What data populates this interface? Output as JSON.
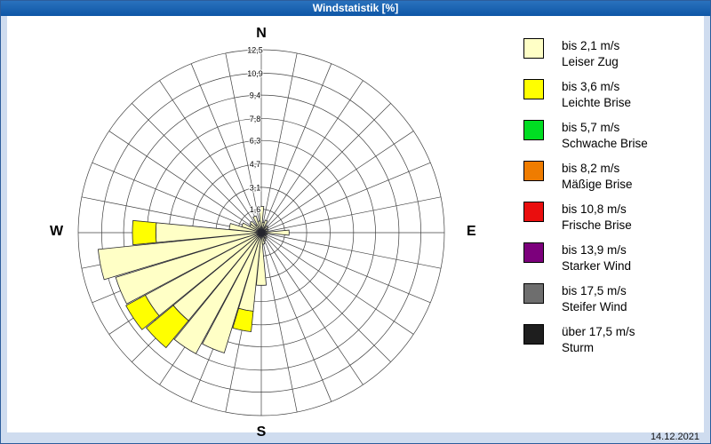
{
  "window": {
    "title": "Windstatistik [%]",
    "titlebar_color": "#1663b2",
    "date": "14.12.2021"
  },
  "compass": {
    "north": "N",
    "east": "E",
    "south": "S",
    "west": "W"
  },
  "legend": {
    "position": "right",
    "items": [
      {
        "color": "#ffffc6",
        "line1": "bis 2,1 m/s",
        "line2": "Leiser Zug"
      },
      {
        "color": "#ffff00",
        "line1": "bis 3,6 m/s",
        "line2": "Leichte Brise"
      },
      {
        "color": "#00dd22",
        "line1": "bis 5,7 m/s",
        "line2": "Schwache Brise"
      },
      {
        "color": "#ef7c00",
        "line1": "bis 8,2 m/s",
        "line2": "Mäßige Brise"
      },
      {
        "color": "#ea0e0e",
        "line1": "bis 10,8 m/s",
        "line2": "Frische Brise"
      },
      {
        "color": "#7c007c",
        "line1": "bis 13,9 m/s",
        "line2": "Starker Wind"
      },
      {
        "color": "#6e6e6e",
        "line1": "bis 17,5 m/s",
        "line2": "Steifer Wind"
      },
      {
        "color": "#1e1e1e",
        "line1": "über 17,5 m/s",
        "line2": "Sturm"
      }
    ]
  },
  "chart_data": {
    "type": "windrose",
    "title": "Windstatistik [%]",
    "unit": "%",
    "sectors": 32,
    "angle_step_deg": 11.25,
    "petal_half_angle_deg": 5.4,
    "rings": 8,
    "max": 12.5,
    "ring_values": [
      1.6,
      3.1,
      4.7,
      6.3,
      7.8,
      9.4,
      10.9,
      12.5
    ],
    "ring_labels": [
      "1,6",
      "3,1",
      "4,7",
      "6,3",
      "7,8",
      "9,4",
      "10,9",
      "12,5"
    ],
    "grid": true,
    "legend_position": "right",
    "series": [
      {
        "name": "bis 2,1 m/s",
        "color": "#ffffc6",
        "values": [
          1.8,
          0.7,
          0.9,
          0.4,
          0.6,
          0.3,
          0.5,
          0.3,
          1.9,
          0.4,
          0.4,
          0.3,
          0.5,
          0.4,
          0.6,
          0.8,
          3.6,
          5.4,
          8.6,
          9.4,
          7.8,
          9.0,
          10.4,
          11.2,
          7.2,
          2.2,
          1.4,
          0.9,
          1.0,
          0.6,
          1.2,
          0.8
        ]
      },
      {
        "name": "bis 3,6 m/s",
        "color": "#ffff00",
        "values": [
          0,
          0,
          0,
          0,
          0,
          0,
          0,
          0,
          0,
          0,
          0,
          0,
          0,
          0,
          0,
          0,
          0,
          1.4,
          0,
          0,
          2.4,
          1.5,
          0,
          0,
          1.6,
          0,
          0,
          0,
          0,
          0,
          0,
          0
        ]
      }
    ]
  }
}
